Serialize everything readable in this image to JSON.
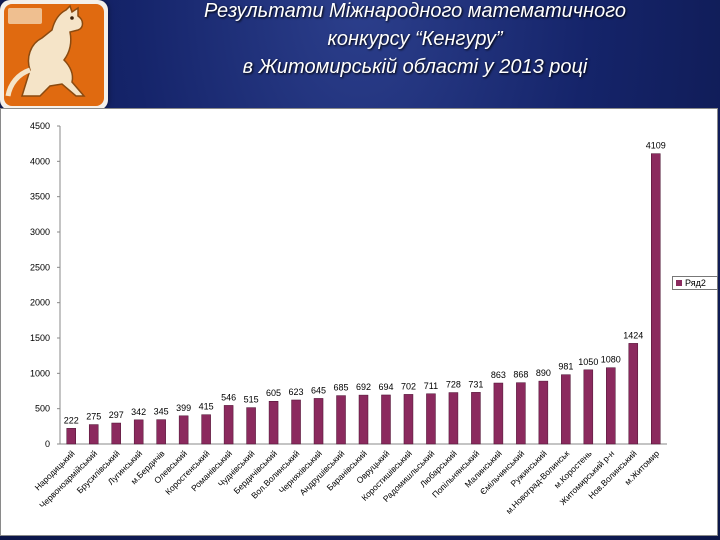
{
  "header": {
    "title_lines": [
      "Результати Міжнародного математичного",
      "конкурсу “Кенгуру”",
      "в Житомирській області у 2013 році"
    ]
  },
  "logo": {
    "icon": "kangaroo-logo-icon"
  },
  "colors": {
    "bar": "#8b2a5e",
    "title": "#ffffff",
    "background": "#15246a"
  },
  "chart_data": {
    "type": "bar",
    "categories": [
      "Народицький",
      "Червоноармійський",
      "Брусилівський",
      "Лугинський",
      "м.Бердичів",
      "Олевський",
      "Коростенський",
      "Романівський",
      "Чуднівський",
      "Бердичівський",
      "Вол.Волинський",
      "Черняхівський",
      "Андрушівський",
      "Баранівський",
      "Овруцький",
      "Коростишівський",
      "Радомишльський",
      "Любарський",
      "Попільнянський",
      "Малинський",
      "Ємільчинський",
      "Ружинський",
      "м.Новоград-Волинськ",
      "м.Коростень",
      "Житомирський р-н",
      "Нов.Волинський",
      "м.Житомир"
    ],
    "series": [
      {
        "name": "Ряд2",
        "values": [
          222,
          275,
          297,
          342,
          345,
          399,
          415,
          546,
          515,
          605,
          623,
          645,
          685,
          692,
          694,
          702,
          711,
          728,
          731,
          863,
          868,
          890,
          981,
          1050,
          1080,
          1424,
          4109
        ]
      }
    ],
    "ylim": [
      0,
      4500
    ],
    "yticks": [
      "0",
      "500",
      "1000",
      "1500",
      "2000",
      "2500",
      "3000",
      "3500",
      "4000",
      "4500"
    ],
    "legend": "right",
    "grid": false
  }
}
